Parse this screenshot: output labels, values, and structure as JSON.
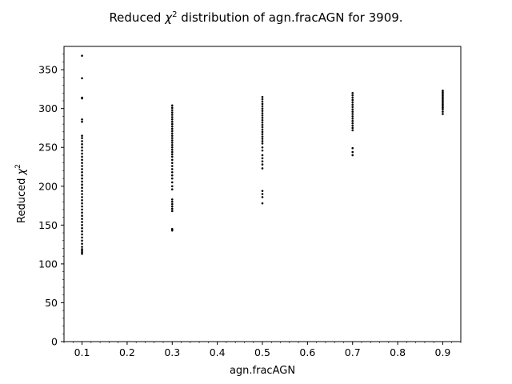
{
  "chart_data": {
    "type": "scatter",
    "title_prefix": "Reduced ",
    "title_symbol": "χ",
    "title_superscript": "2",
    "title_suffix": " distribution of agn.fracAGN for 3909.",
    "xlabel": "agn.fracAGN",
    "ylabel_prefix": "Reduced ",
    "ylabel_symbol": "χ",
    "ylabel_superscript": "2",
    "xlim": [
      0.06,
      0.94
    ],
    "ylim": [
      0,
      380
    ],
    "x_ticks": [
      {
        "value": 0.1,
        "label": "0.1"
      },
      {
        "value": 0.2,
        "label": "0.2"
      },
      {
        "value": 0.3,
        "label": "0.3"
      },
      {
        "value": 0.4,
        "label": "0.4"
      },
      {
        "value": 0.5,
        "label": "0.5"
      },
      {
        "value": 0.6,
        "label": "0.6"
      },
      {
        "value": 0.7,
        "label": "0.7"
      },
      {
        "value": 0.8,
        "label": "0.8"
      },
      {
        "value": 0.9,
        "label": "0.9"
      }
    ],
    "y_ticks": [
      {
        "value": 0,
        "label": "0"
      },
      {
        "value": 50,
        "label": "50"
      },
      {
        "value": 100,
        "label": "100"
      },
      {
        "value": 150,
        "label": "150"
      },
      {
        "value": 200,
        "label": "200"
      },
      {
        "value": 250,
        "label": "250"
      },
      {
        "value": 300,
        "label": "300"
      },
      {
        "value": 350,
        "label": "350"
      }
    ],
    "marker_color": "#000000",
    "series": [
      {
        "name": "agn.fracAGN = 0.1",
        "x": 0.1,
        "y": [
          368,
          339,
          314,
          313,
          286,
          283,
          265,
          262,
          258,
          254,
          250,
          246,
          242,
          238,
          234,
          230,
          226,
          222,
          218,
          214,
          210,
          206,
          202,
          198,
          194,
          190,
          186,
          182,
          178,
          174,
          170,
          166,
          162,
          158,
          154,
          150,
          146,
          142,
          138,
          134,
          130,
          126,
          122,
          119,
          117,
          115,
          113
        ]
      },
      {
        "name": "agn.fracAGN = 0.3",
        "x": 0.3,
        "y": [
          304,
          301,
          298,
          295,
          292,
          289,
          286,
          283,
          280,
          277,
          274,
          271,
          268,
          265,
          262,
          259,
          256,
          253,
          250,
          247,
          244,
          241,
          238,
          234,
          230,
          226,
          222,
          218,
          214,
          210,
          205,
          200,
          196,
          183,
          180,
          177,
          174,
          171,
          168,
          145,
          143
        ]
      },
      {
        "name": "agn.fracAGN = 0.5",
        "x": 0.5,
        "y": [
          315,
          312,
          309,
          306,
          303,
          300,
          297,
          294,
          291,
          288,
          285,
          282,
          279,
          276,
          273,
          270,
          267,
          264,
          261,
          258,
          255,
          250,
          246,
          240,
          236,
          232,
          228,
          223,
          194,
          190,
          186,
          178
        ]
      },
      {
        "name": "agn.fracAGN = 0.7",
        "x": 0.7,
        "y": [
          320,
          317,
          314,
          311,
          308,
          305,
          302,
          299,
          296,
          293,
          290,
          287,
          284,
          281,
          278,
          275,
          272,
          249,
          244,
          240
        ]
      },
      {
        "name": "agn.fracAGN = 0.9",
        "x": 0.9,
        "y": [
          323,
          321,
          319,
          317,
          315,
          313,
          311,
          309,
          307,
          305,
          303,
          301,
          299,
          296,
          293
        ]
      }
    ]
  }
}
